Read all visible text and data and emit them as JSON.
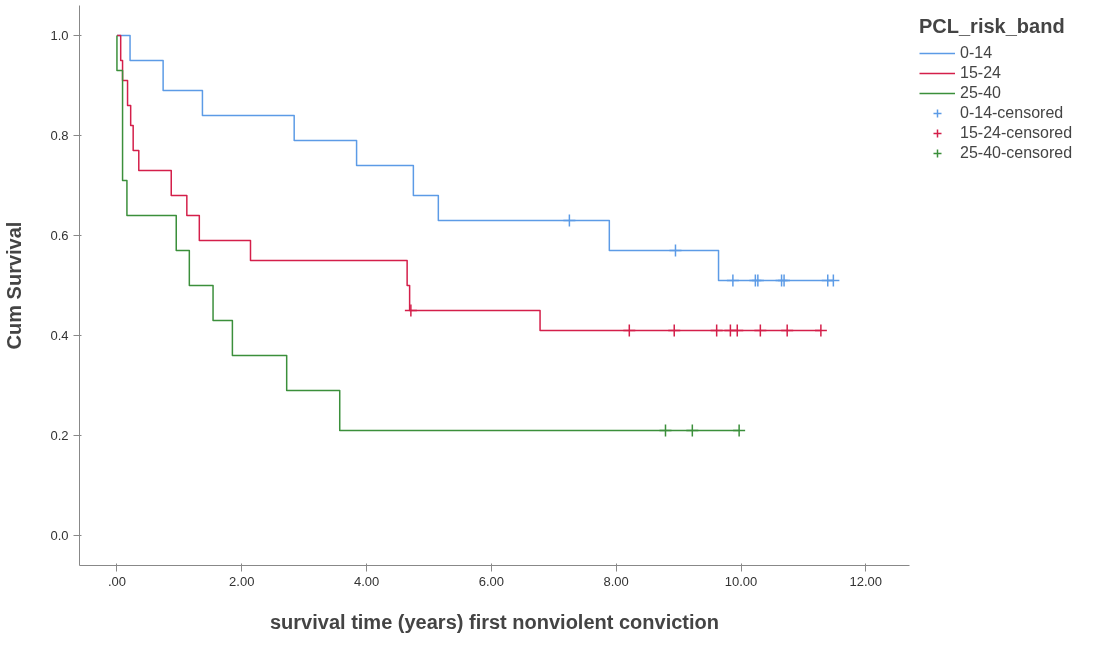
{
  "chart_data": {
    "type": "step",
    "xlabel": "survival time (years) first nonviolent conviction",
    "ylabel": "Cum Survival",
    "legend_title": "PCL_risk_band",
    "legend": "right",
    "grid": false,
    "xlim": [
      -0.6,
      12.7
    ],
    "ylim": [
      -0.06,
      1.06
    ],
    "xticks": [
      {
        "value": 0,
        "label": ".00"
      },
      {
        "value": 2,
        "label": "2.00"
      },
      {
        "value": 4,
        "label": "4.00"
      },
      {
        "value": 6,
        "label": "6.00"
      },
      {
        "value": 8,
        "label": "8.00"
      },
      {
        "value": 10,
        "label": "10.00"
      },
      {
        "value": 12,
        "label": "12.00"
      }
    ],
    "yticks": [
      {
        "value": 0,
        "label": "0.0"
      },
      {
        "value": 0.2,
        "label": "0.2"
      },
      {
        "value": 0.4,
        "label": "0.4"
      },
      {
        "value": 0.6,
        "label": "0.6"
      },
      {
        "value": 0.8,
        "label": "0.8"
      },
      {
        "value": 1,
        "label": "1.0"
      }
    ],
    "series": [
      {
        "name": "0-14",
        "color": "#5c9be6",
        "x": [
          0,
          0.21,
          0.74,
          1.37,
          2.84,
          3.84,
          4.75,
          5.15,
          7.89,
          9.64,
          11.48
        ],
        "values": [
          1,
          0.95,
          0.89,
          0.84,
          0.79,
          0.74,
          0.68,
          0.63,
          0.57,
          0.51,
          0.51
        ]
      },
      {
        "name": "15-24",
        "color": "#d41f4a",
        "x": [
          0,
          0.06,
          0.09,
          0.17,
          0.22,
          0.26,
          0.35,
          0.87,
          1.12,
          1.32,
          2.14,
          4.65,
          4.69,
          6.78,
          11.28
        ],
        "values": [
          1,
          0.95,
          0.91,
          0.86,
          0.82,
          0.77,
          0.73,
          0.68,
          0.64,
          0.59,
          0.55,
          0.5,
          0.45,
          0.41,
          0.41
        ]
      },
      {
        "name": "25-40",
        "color": "#3b8f3b",
        "x": [
          0,
          0,
          0.09,
          0.16,
          0.95,
          1.16,
          1.54,
          1.85,
          2.72,
          3.57,
          9.97
        ],
        "values": [
          1,
          0.93,
          0.71,
          0.64,
          0.57,
          0.5,
          0.43,
          0.36,
          0.29,
          0.21,
          0.21
        ]
      },
      {
        "name": "0-14-censored",
        "type": "scatter",
        "marker": "cross",
        "color": "#5c9be6",
        "x": [
          7.25,
          8.95,
          9.87,
          10.23,
          10.27,
          10.65,
          10.69,
          11.39,
          11.48
        ],
        "values": [
          0.63,
          0.57,
          0.51,
          0.51,
          0.51,
          0.51,
          0.51,
          0.51,
          0.51
        ]
      },
      {
        "name": "15-24-censored",
        "type": "scatter",
        "marker": "cross",
        "color": "#d41f4a",
        "x": [
          4.71,
          8.21,
          8.93,
          9.61,
          9.83,
          9.94,
          10.31,
          10.74,
          11.28
        ],
        "values": [
          0.45,
          0.41,
          0.41,
          0.41,
          0.41,
          0.41,
          0.41,
          0.41,
          0.41
        ]
      },
      {
        "name": "25-40-censored",
        "type": "scatter",
        "marker": "cross",
        "color": "#3b8f3b",
        "x": [
          8.79,
          9.22,
          9.97
        ],
        "values": [
          0.21,
          0.21,
          0.21
        ]
      }
    ]
  }
}
